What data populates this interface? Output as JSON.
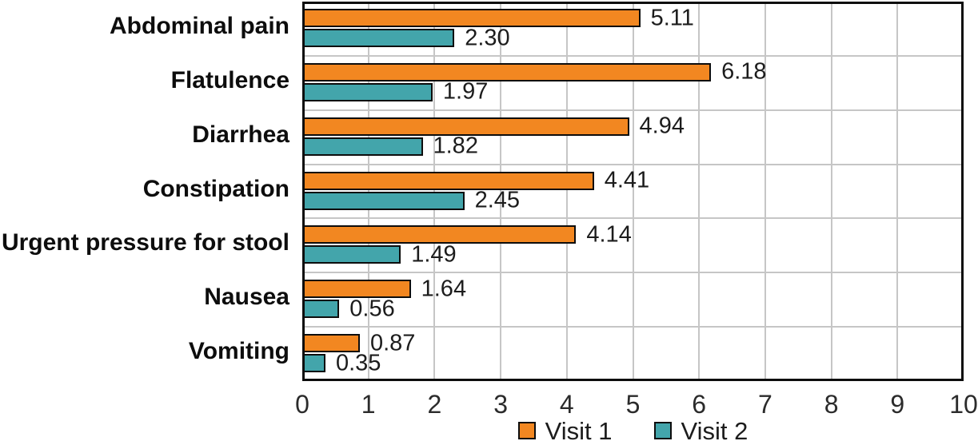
{
  "chart_data": {
    "type": "bar",
    "orientation": "horizontal",
    "title": "",
    "categories": [
      "Abdominal pain",
      "Flatulence",
      "Diarrhea",
      "Constipation",
      "Urgent pressure for stool",
      "Nausea",
      "Vomiting"
    ],
    "series": [
      {
        "name": "Visit 1",
        "color": "#F28721",
        "values": [
          5.11,
          6.18,
          4.94,
          4.41,
          4.14,
          1.64,
          0.87
        ],
        "labels": [
          "5.11",
          "6.18",
          "4.94",
          "4.41",
          "4.14",
          "1.64",
          "0.87"
        ]
      },
      {
        "name": "Visit 2",
        "color": "#43A5AB",
        "values": [
          2.3,
          1.97,
          1.82,
          2.45,
          1.49,
          0.56,
          0.35
        ],
        "labels": [
          "2.30",
          "1.97",
          "1.82",
          "2.45",
          "1.49",
          "0.56",
          "0.35"
        ]
      }
    ],
    "xlim": [
      0,
      10
    ],
    "xticks": [
      "0",
      "1",
      "2",
      "3",
      "4",
      "5",
      "6",
      "7",
      "8",
      "9",
      "10"
    ],
    "grid": true,
    "legend_position": "bottom",
    "colors": {
      "bar_outline": "#0d0d0d",
      "gridline": "#c6c6c6",
      "text": "#1c1c1c"
    }
  }
}
